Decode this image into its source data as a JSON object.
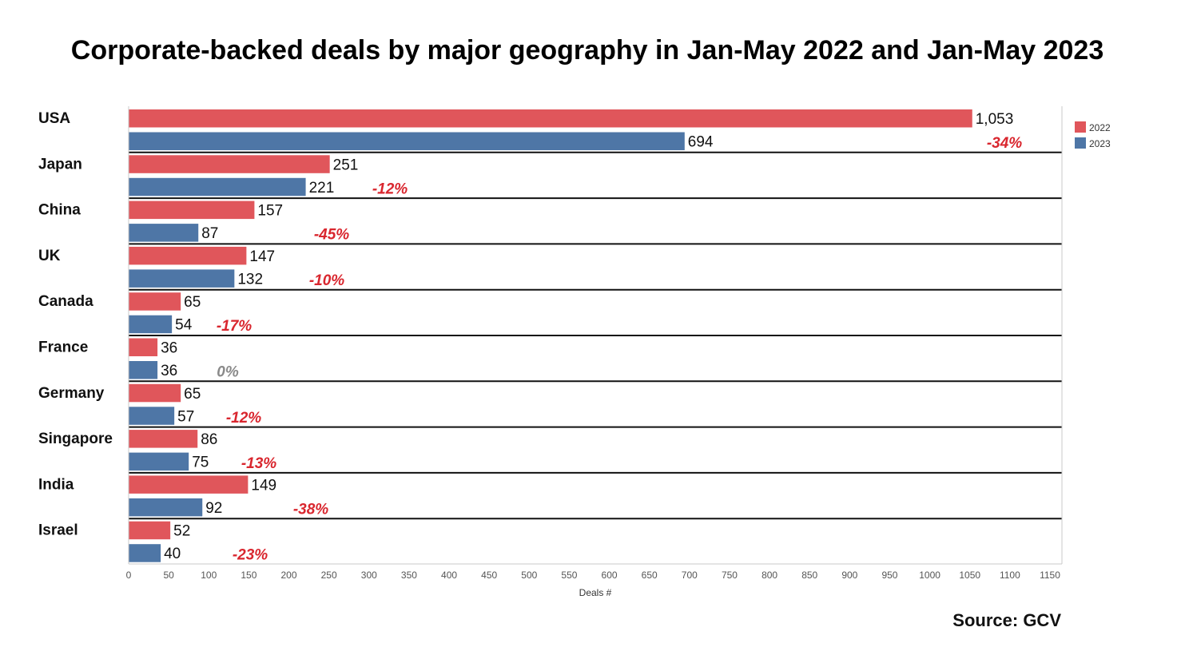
{
  "chart_data": {
    "type": "bar",
    "orientation": "horizontal",
    "title": "Corporate-backed deals by major geography in Jan-May 2022 and Jan-May 2023",
    "xlabel": "Deals #",
    "xlim": [
      0,
      1150
    ],
    "x_ticks": [
      "0",
      "50",
      "100",
      "150",
      "200",
      "250",
      "300",
      "350",
      "400",
      "450",
      "500",
      "550",
      "600",
      "650",
      "700",
      "750",
      "800",
      "850",
      "900",
      "950",
      "1000",
      "1050",
      "1100",
      "1150"
    ],
    "categories": [
      "USA",
      "Japan",
      "China",
      "UK",
      "Canada",
      "France",
      "Germany",
      "Singapore",
      "India",
      "Israel"
    ],
    "series": [
      {
        "name": "2022",
        "color": "#e0565b",
        "values": [
          1053,
          251,
          157,
          147,
          65,
          36,
          65,
          86,
          149,
          52
        ],
        "labels": [
          "1,053",
          "251",
          "157",
          "147",
          "65",
          "36",
          "65",
          "86",
          "149",
          "52"
        ]
      },
      {
        "name": "2023",
        "color": "#4e76a6",
        "values": [
          694,
          221,
          87,
          132,
          54,
          36,
          57,
          75,
          92,
          40
        ],
        "labels": [
          "694",
          "221",
          "87",
          "132",
          "54",
          "36",
          "57",
          "75",
          "92",
          "40"
        ]
      }
    ],
    "changes": [
      "-34%",
      "-12%",
      "-45%",
      "-10%",
      "-17%",
      "0%",
      "-12%",
      "-13%",
      "-38%",
      "-23%"
    ],
    "change_color": "#d9262e",
    "zero_change_color": "#8a8a8a",
    "legend_position": "top-right",
    "grid": false
  },
  "source": "Source: GCV"
}
